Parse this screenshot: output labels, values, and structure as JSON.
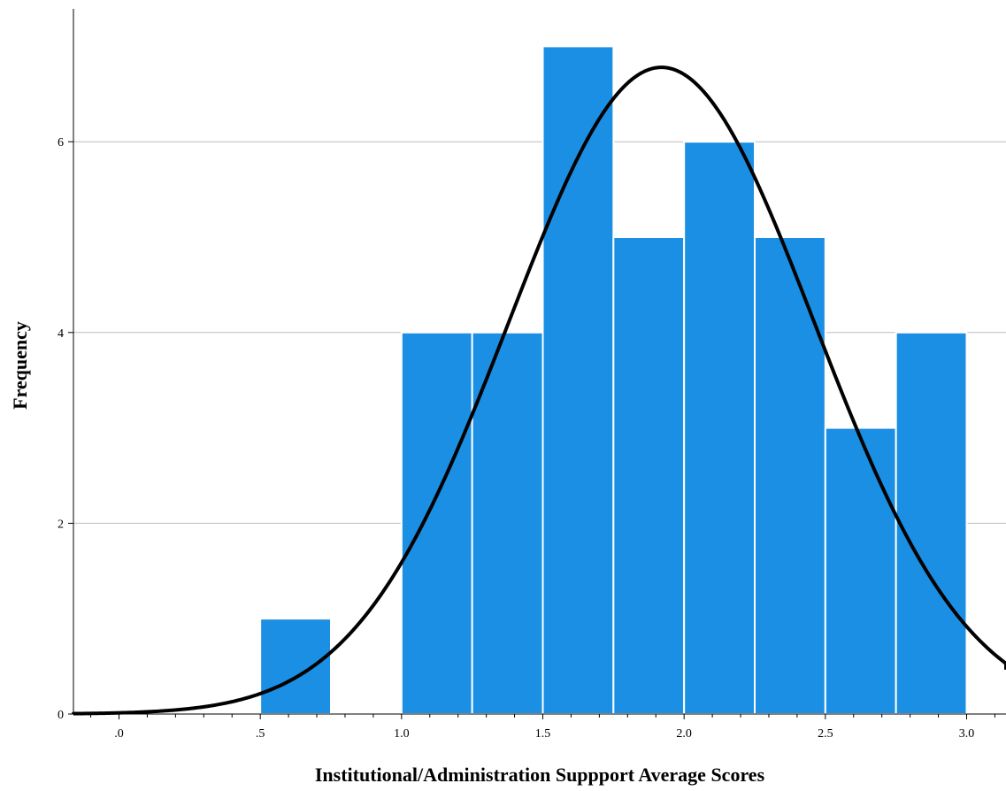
{
  "chart_data": {
    "type": "bar",
    "subtype": "histogram",
    "xlabel": "Institutional/Administration Suppport Average Scores",
    "ylabel": "Frequency",
    "xlim": [
      -0.17,
      3.17
    ],
    "ylim": [
      0,
      7.5
    ],
    "x_ticks": [
      {
        "value": 0.0,
        "label": ".0"
      },
      {
        "value": 0.5,
        "label": ".5"
      },
      {
        "value": 1.0,
        "label": "1.0"
      },
      {
        "value": 1.5,
        "label": "1.5"
      },
      {
        "value": 2.0,
        "label": "2.0"
      },
      {
        "value": 2.5,
        "label": "2.5"
      },
      {
        "value": 3.0,
        "label": "3.0"
      }
    ],
    "x_minor_step": 0.1,
    "y_ticks": [
      {
        "value": 0,
        "label": "0"
      },
      {
        "value": 2,
        "label": "2"
      },
      {
        "value": 4,
        "label": "4"
      },
      {
        "value": 6,
        "label": "6"
      }
    ],
    "gridlines_y": [
      2,
      4,
      6
    ],
    "bins": [
      {
        "start": 0.5,
        "end": 0.75,
        "count": 1
      },
      {
        "start": 1.0,
        "end": 1.25,
        "count": 4
      },
      {
        "start": 1.25,
        "end": 1.5,
        "count": 4
      },
      {
        "start": 1.5,
        "end": 1.75,
        "count": 7
      },
      {
        "start": 1.75,
        "end": 2.0,
        "count": 5
      },
      {
        "start": 2.0,
        "end": 2.25,
        "count": 6
      },
      {
        "start": 2.25,
        "end": 2.5,
        "count": 5
      },
      {
        "start": 2.5,
        "end": 2.75,
        "count": 3
      },
      {
        "start": 2.75,
        "end": 3.0,
        "count": 4
      }
    ],
    "normal_curve": {
      "mean": 1.92,
      "sd": 0.54,
      "peak": 6.78
    },
    "colors": {
      "bar_fill": "#1a8fe3",
      "bar_stroke": "#ffffff",
      "curve": "#000000",
      "grid": "#bdbdbd",
      "axis": "#000000"
    },
    "grid": true,
    "legend": "none"
  }
}
